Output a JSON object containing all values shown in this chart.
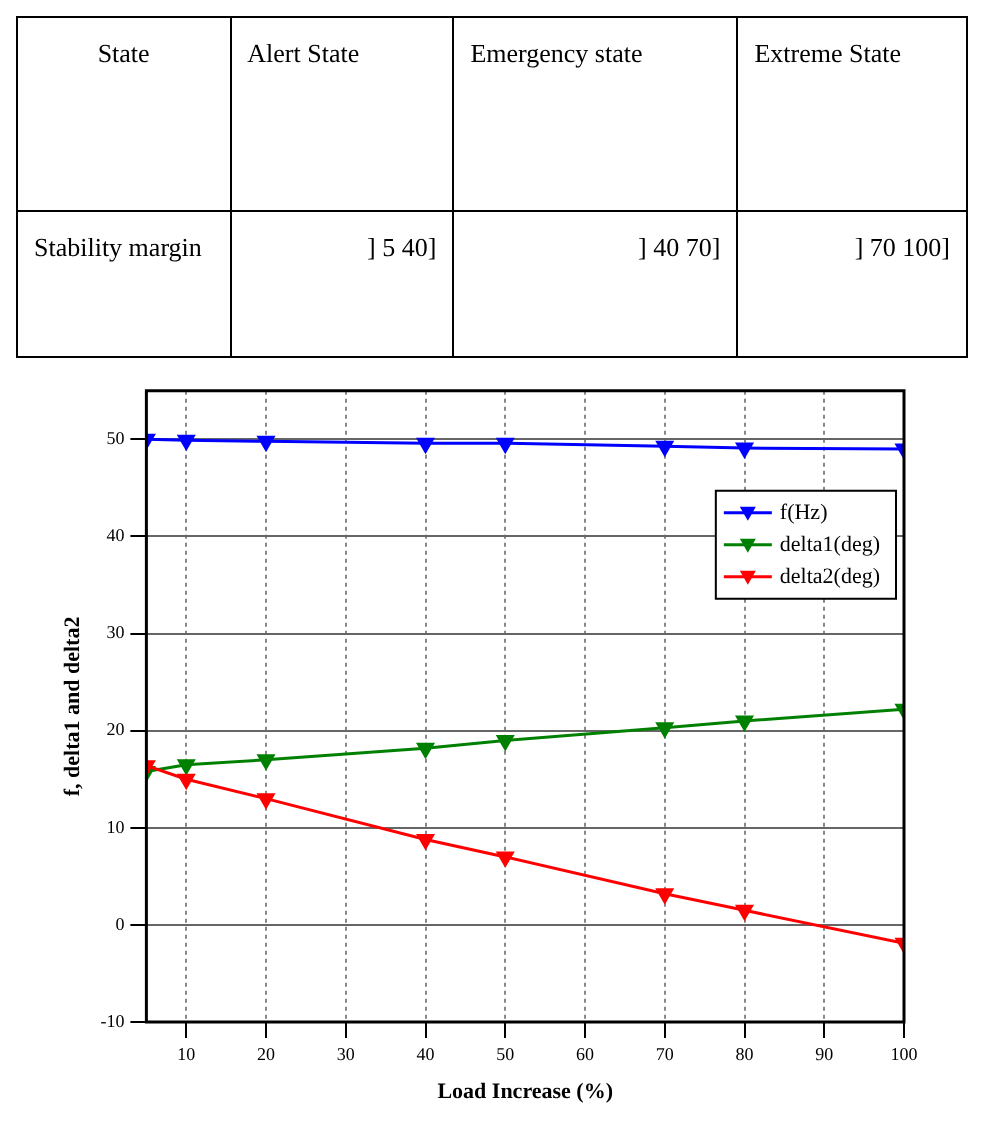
{
  "chart_data": {
    "type": "line",
    "xlabel": "Load Increase (%)",
    "ylabel": "f, delta1 and delta2",
    "annotations": [
      "State",
      "Alert State",
      "Emergency state",
      "Extreme State",
      "Stability margin",
      "] 5 40]",
      "] 40 70]",
      "] 70 100]"
    ],
    "x": [
      5,
      10,
      20,
      40,
      50,
      70,
      80,
      100
    ],
    "series": [
      {
        "name": "f(Hz)",
        "color": "#0000ff",
        "values": [
          50,
          49.9,
          49.8,
          49.6,
          49.6,
          49.3,
          49.1,
          49.0
        ]
      },
      {
        "name": "delta1(deg)",
        "color": "#008000",
        "values": [
          15.8,
          16.5,
          17,
          18.2,
          19,
          20.3,
          21,
          22.2
        ]
      },
      {
        "name": "delta2(deg)",
        "color": "#ff0000",
        "values": [
          16.4,
          15,
          13,
          8.8,
          7,
          3.2,
          1.5,
          -1.9
        ]
      }
    ],
    "xlim": [
      5,
      100
    ],
    "xticks": [
      10,
      20,
      30,
      40,
      50,
      60,
      70,
      80,
      90,
      100
    ],
    "ylim": [
      -10,
      55
    ],
    "yticks": [
      -10,
      0,
      10,
      20,
      30,
      40,
      50
    ],
    "grid": true,
    "legend": "top right",
    "marker": "triangle",
    "line_style": "solid"
  }
}
